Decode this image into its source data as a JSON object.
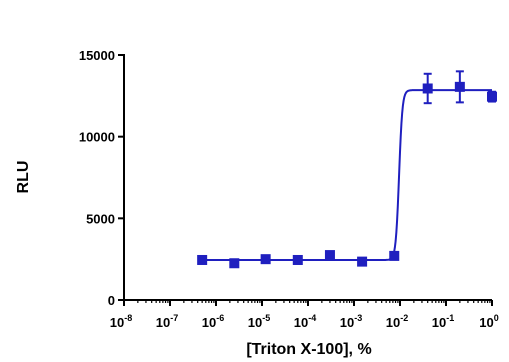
{
  "chart_data": {
    "type": "scatter",
    "title": "",
    "xlabel": "[Triton X-100], %",
    "ylabel": "RLU",
    "x_scale": "log",
    "xlim": [
      1e-08,
      1
    ],
    "ylim": [
      0,
      15000
    ],
    "x_tick_base": "10",
    "x_tick_exponents": [
      "-8",
      "-7",
      "-6",
      "-5",
      "-4",
      "-3",
      "-2",
      "-1",
      "0"
    ],
    "y_ticks": [
      0,
      5000,
      10000,
      15000
    ],
    "y_tick_labels": [
      "0",
      "5000",
      "10000",
      "15000"
    ],
    "grid": false,
    "legend": "none",
    "color": "#1f1fbf",
    "series": [
      {
        "points": [
          {
            "x": 5e-07,
            "y": 2450
          },
          {
            "x": 2.5e-06,
            "y": 2250
          },
          {
            "x": 1.2e-05,
            "y": 2500
          },
          {
            "x": 6e-05,
            "y": 2450
          },
          {
            "x": 0.0003,
            "y": 2750
          },
          {
            "x": 0.0015,
            "y": 2350
          },
          {
            "x": 0.0075,
            "y": 2700
          },
          {
            "x": 0.04,
            "y": 12950,
            "err": 900
          },
          {
            "x": 0.2,
            "y": 13050,
            "err": 950
          },
          {
            "x": 1,
            "y": 12450,
            "err": 300
          }
        ],
        "fit": {
          "bottom": 2450,
          "top": 12850,
          "logEC50": -2.02,
          "hill": 12
        }
      }
    ]
  }
}
